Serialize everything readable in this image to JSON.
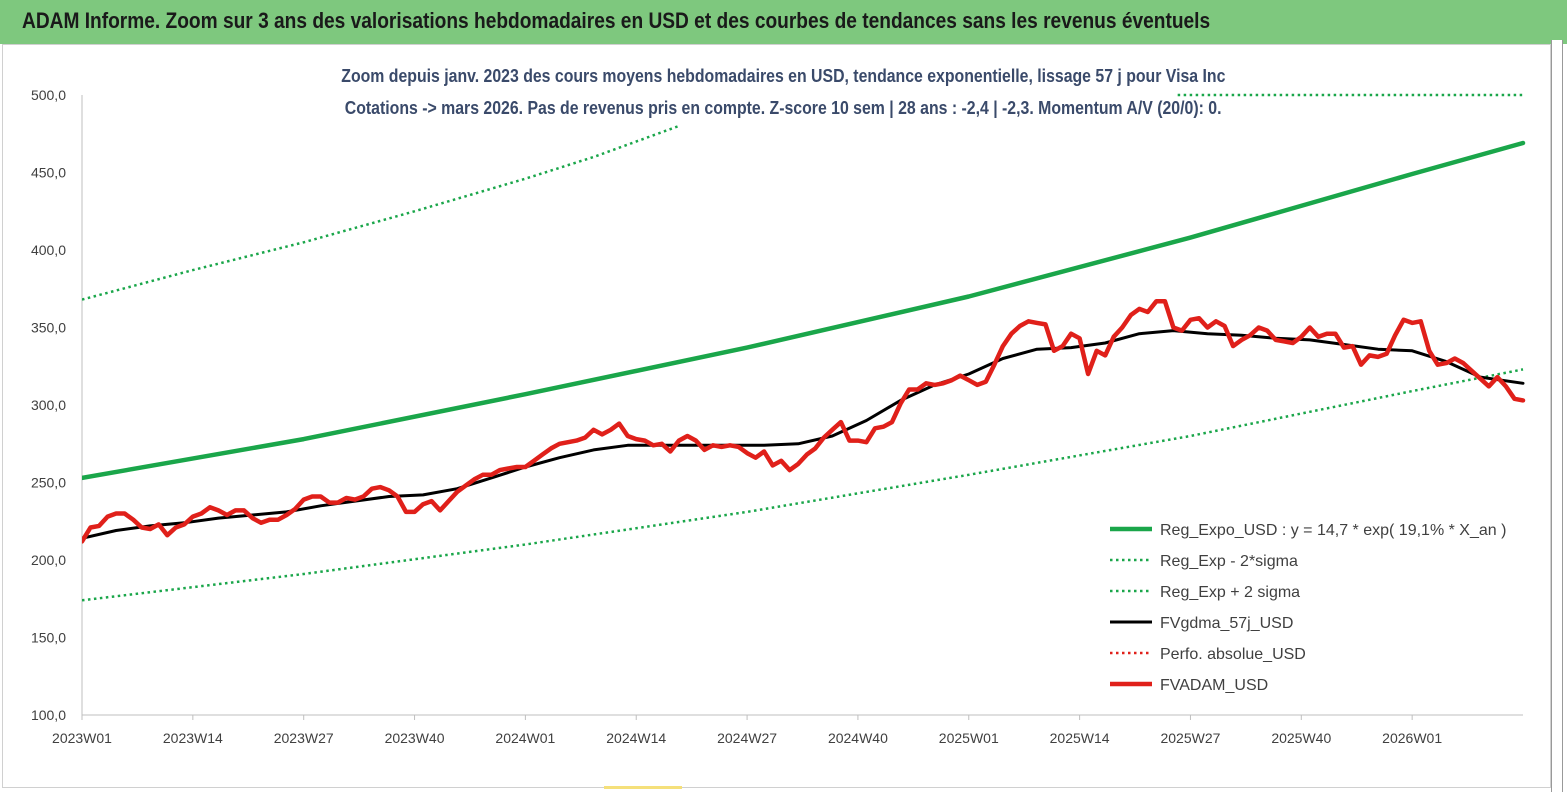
{
  "banner": {
    "title": "ADAM Informe. Zoom sur 3 ans des valorisations hebdomadaires en USD et des courbes de tendances sans les revenus éventuels"
  },
  "chart_data": {
    "type": "line",
    "title": "Zoom depuis janv. 2023 des cours moyens hebdomadaires en USD, tendance exponentielle, lissage 57 j pour Visa Inc",
    "subtitle": "Cotations -> mars 2026. Pas de revenus pris en  compte. Z-score 10 sem  | 28 ans : -2,4 | -2,3. Momentum A/V (20/0): 0.",
    "ylim": [
      100,
      500
    ],
    "xlim_weeks": [
      0,
      169
    ],
    "y_ticks": [
      "100,0",
      "150,0",
      "200,0",
      "250,0",
      "300,0",
      "350,0",
      "400,0",
      "450,0",
      "500,0"
    ],
    "x_ticks": [
      {
        "label": "2023W01",
        "week": 0
      },
      {
        "label": "2023W14",
        "week": 13
      },
      {
        "label": "2023W27",
        "week": 26
      },
      {
        "label": "2023W40",
        "week": 39
      },
      {
        "label": "2024W01",
        "week": 52
      },
      {
        "label": "2024W14",
        "week": 65
      },
      {
        "label": "2024W27",
        "week": 78
      },
      {
        "label": "2024W40",
        "week": 91
      },
      {
        "label": "2025W01",
        "week": 104
      },
      {
        "label": "2025W14",
        "week": 117
      },
      {
        "label": "2025W27",
        "week": 130
      },
      {
        "label": "2025W40",
        "week": 143
      },
      {
        "label": "2026W01",
        "week": 156
      }
    ],
    "grid": false,
    "legend_position": "bottom-right",
    "series": [
      {
        "name": "Reg_Expo_USD : y = 14,7 * exp( 19,1% *  X_an )",
        "color": "#1aa64a",
        "style": "solid-thick",
        "x": [
          0,
          26,
          52,
          78,
          104,
          130,
          156,
          169
        ],
        "y": [
          253,
          278,
          307,
          337,
          370,
          408,
          449,
          469
        ]
      },
      {
        "name": "Reg_Exp - 2*sigma",
        "color": "#1aa64a",
        "style": "dotted",
        "x": [
          0,
          26,
          52,
          78,
          104,
          130,
          156,
          169
        ],
        "y": [
          174,
          191,
          210,
          231,
          255,
          280,
          309,
          323
        ]
      },
      {
        "name": "Reg_Exp + 2 sigma",
        "color": "#1aa64a",
        "style": "dotted",
        "x": [
          0,
          13,
          26,
          39,
          52,
          60,
          66,
          70
        ],
        "y": [
          368,
          387,
          405,
          425,
          446,
          460,
          472,
          480
        ]
      },
      {
        "name": "FVgdma_57j_USD",
        "color": "#000000",
        "style": "solid",
        "x": [
          0,
          4,
          8,
          12,
          16,
          20,
          24,
          28,
          32,
          36,
          40,
          44,
          48,
          52,
          56,
          60,
          64,
          68,
          72,
          76,
          80,
          84,
          88,
          92,
          96,
          100,
          104,
          108,
          112,
          116,
          120,
          124,
          128,
          132,
          136,
          140,
          144,
          148,
          152,
          156,
          160,
          164,
          169
        ],
        "y": [
          214,
          219,
          222,
          224,
          227,
          229,
          231,
          235,
          238,
          241,
          242,
          246,
          253,
          260,
          266,
          271,
          274,
          274,
          274,
          274,
          274,
          275,
          280,
          290,
          303,
          313,
          320,
          330,
          336,
          337,
          340,
          346,
          348,
          346,
          345,
          343,
          342,
          339,
          336,
          335,
          328,
          318,
          314
        ]
      },
      {
        "name": "Perfo. absolue_USD",
        "color": "#e0201a",
        "style": "dotted",
        "x": [],
        "y": []
      },
      {
        "name": "FVADAM_USD",
        "color": "#e0201a",
        "style": "solid-thick",
        "x": [
          0,
          1,
          2,
          3,
          4,
          5,
          6,
          7,
          8,
          9,
          10,
          11,
          12,
          13,
          14,
          15,
          16,
          17,
          18,
          19,
          20,
          21,
          22,
          23,
          24,
          25,
          26,
          27,
          28,
          29,
          30,
          31,
          32,
          33,
          34,
          35,
          36,
          37,
          38,
          39,
          40,
          41,
          42,
          43,
          44,
          45,
          46,
          47,
          48,
          49,
          50,
          51,
          52,
          53,
          54,
          55,
          56,
          57,
          58,
          59,
          60,
          61,
          62,
          63,
          64,
          65,
          66,
          67,
          68,
          69,
          70,
          71,
          72,
          73,
          74,
          75,
          76,
          77,
          78,
          79,
          80,
          81,
          82,
          83,
          84,
          85,
          86,
          87,
          88,
          89,
          90,
          91,
          92,
          93,
          94,
          95,
          96,
          97,
          98,
          99,
          100,
          101,
          102,
          103,
          104,
          105,
          106,
          107,
          108,
          109,
          110,
          111,
          112,
          113,
          114,
          115,
          116,
          117,
          118,
          119,
          120,
          121,
          122,
          123,
          124,
          125,
          126,
          127,
          128,
          129,
          130,
          131,
          132,
          133,
          134,
          135,
          136,
          137,
          138,
          139,
          140,
          141,
          142,
          143,
          144,
          145,
          146,
          147,
          148,
          149,
          150,
          151,
          152,
          153,
          154,
          155,
          156,
          157,
          158,
          159,
          160,
          161,
          162,
          163,
          164,
          165,
          166,
          167,
          168,
          169
        ],
        "y": [
          212,
          221,
          222,
          228,
          230,
          230,
          226,
          221,
          220,
          223,
          216,
          221,
          223,
          228,
          230,
          234,
          232,
          229,
          232,
          232,
          227,
          224,
          226,
          226,
          229,
          233,
          239,
          241,
          241,
          237,
          237,
          240,
          239,
          241,
          246,
          247,
          245,
          241,
          231,
          231,
          236,
          238,
          232,
          238,
          244,
          248,
          252,
          255,
          255,
          258,
          259,
          260,
          260,
          264,
          268,
          272,
          275,
          276,
          277,
          279,
          284,
          281,
          284,
          288,
          280,
          278,
          277,
          274,
          275,
          270,
          277,
          280,
          277,
          271,
          274,
          273,
          274,
          273,
          269,
          266,
          270,
          261,
          264,
          258,
          262,
          268,
          272,
          279,
          284,
          289,
          277,
          277,
          276,
          285,
          286,
          289,
          301,
          310,
          310,
          314,
          313,
          314,
          316,
          319,
          316,
          313,
          315,
          326,
          338,
          346,
          351,
          354,
          353,
          352,
          335,
          338,
          346,
          343,
          320,
          335,
          332,
          344,
          350,
          358,
          362,
          360,
          367,
          367,
          350,
          348,
          355,
          356,
          350,
          354,
          351,
          338,
          342,
          345,
          350,
          348,
          342,
          341,
          340,
          344,
          350,
          344,
          346,
          346,
          337,
          338,
          326,
          332,
          331,
          333,
          345,
          355,
          353,
          354,
          335,
          326,
          327,
          330,
          327,
          322,
          317,
          312,
          318,
          312,
          304,
          303
        ]
      }
    ]
  }
}
